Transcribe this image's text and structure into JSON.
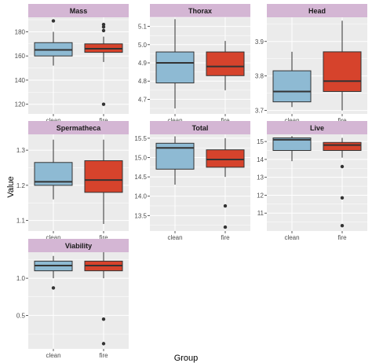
{
  "axis": {
    "xlabel": "Group",
    "ylabel": "Value"
  },
  "colors": {
    "panel_bg": "#ebebeb",
    "grid": "#ffffff",
    "strip_bg": "#d4b6d4",
    "clean": "#8ebad3",
    "fire": "#d6432c",
    "stroke": "#333333",
    "tick_text": "#4d4d4d"
  },
  "chart_data": [
    {
      "type": "box",
      "title": "Mass",
      "categories": [
        "clean",
        "fire"
      ],
      "ylim": [
        112,
        192
      ],
      "yticks": [
        120,
        140,
        160,
        180
      ],
      "boxes": [
        {
          "group": "clean",
          "min": 152,
          "q1": 160,
          "median": 165,
          "q3": 171,
          "max": 180,
          "outliers": [
            189
          ]
        },
        {
          "group": "fire",
          "min": 155,
          "q1": 163,
          "median": 166,
          "q3": 170,
          "max": 176,
          "outliers": [
            181,
            184,
            186,
            120
          ]
        }
      ]
    },
    {
      "type": "box",
      "title": "Thorax",
      "categories": [
        "clean",
        "fire"
      ],
      "ylim": [
        4.62,
        5.15
      ],
      "yticks": [
        4.7,
        4.8,
        4.9,
        5.0,
        5.1
      ],
      "boxes": [
        {
          "group": "clean",
          "min": 4.65,
          "q1": 4.79,
          "median": 4.9,
          "q3": 4.96,
          "max": 5.14,
          "outliers": []
        },
        {
          "group": "fire",
          "min": 4.75,
          "q1": 4.83,
          "median": 4.88,
          "q3": 4.96,
          "max": 5.02,
          "outliers": []
        }
      ]
    },
    {
      "type": "box",
      "title": "Head",
      "categories": [
        "clean",
        "fire"
      ],
      "ylim": [
        3.69,
        3.97
      ],
      "yticks": [
        3.7,
        3.8,
        3.9
      ],
      "boxes": [
        {
          "group": "clean",
          "min": 3.71,
          "q1": 3.725,
          "median": 3.755,
          "q3": 3.815,
          "max": 3.87,
          "outliers": []
        },
        {
          "group": "fire",
          "min": 3.7,
          "q1": 3.755,
          "median": 3.785,
          "q3": 3.87,
          "max": 3.96,
          "outliers": []
        }
      ]
    },
    {
      "type": "box",
      "title": "Spermatheca",
      "categories": [
        "clean",
        "fire"
      ],
      "ylim": [
        1.07,
        1.345
      ],
      "yticks": [
        1.1,
        1.2,
        1.3
      ],
      "boxes": [
        {
          "group": "clean",
          "min": 1.16,
          "q1": 1.2,
          "median": 1.21,
          "q3": 1.265,
          "max": 1.33,
          "outliers": []
        },
        {
          "group": "fire",
          "min": 1.09,
          "q1": 1.18,
          "median": 1.215,
          "q3": 1.27,
          "max": 1.33,
          "outliers": []
        }
      ]
    },
    {
      "type": "box",
      "title": "Total",
      "categories": [
        "clean",
        "fire"
      ],
      "ylim": [
        13.1,
        15.6
      ],
      "yticks": [
        13.5,
        14.0,
        14.5,
        15.0,
        15.5
      ],
      "boxes": [
        {
          "group": "clean",
          "min": 14.3,
          "q1": 14.7,
          "median": 15.25,
          "q3": 15.37,
          "max": 15.55,
          "outliers": []
        },
        {
          "group": "fire",
          "min": 14.5,
          "q1": 14.75,
          "median": 14.95,
          "q3": 15.2,
          "max": 15.5,
          "outliers": [
            13.75,
            13.2
          ]
        }
      ]
    },
    {
      "type": "box",
      "title": "Live",
      "categories": [
        "clean",
        "fire"
      ],
      "ylim": [
        10.0,
        15.4
      ],
      "yticks": [
        11,
        12,
        13,
        14,
        15
      ],
      "boxes": [
        {
          "group": "clean",
          "min": 13.9,
          "q1": 14.5,
          "median": 15.1,
          "q3": 15.2,
          "max": 15.3,
          "outliers": []
        },
        {
          "group": "fire",
          "min": 14.1,
          "q1": 14.5,
          "median": 14.8,
          "q3": 14.95,
          "max": 15.2,
          "outliers": [
            13.6,
            11.85,
            10.3
          ]
        }
      ]
    },
    {
      "type": "box",
      "title": "Viability",
      "categories": [
        "clean",
        "fire"
      ],
      "ylim": [
        0.05,
        1.35
      ],
      "yticks": [
        0.5,
        1.0
      ],
      "boxes": [
        {
          "group": "clean",
          "min": 1.0,
          "q1": 1.1,
          "median": 1.17,
          "q3": 1.23,
          "max": 1.3,
          "outliers": [
            0.87
          ]
        },
        {
          "group": "fire",
          "min": 1.0,
          "q1": 1.1,
          "median": 1.17,
          "q3": 1.23,
          "max": 1.35,
          "outliers": [
            0.45,
            0.12
          ]
        }
      ]
    }
  ]
}
